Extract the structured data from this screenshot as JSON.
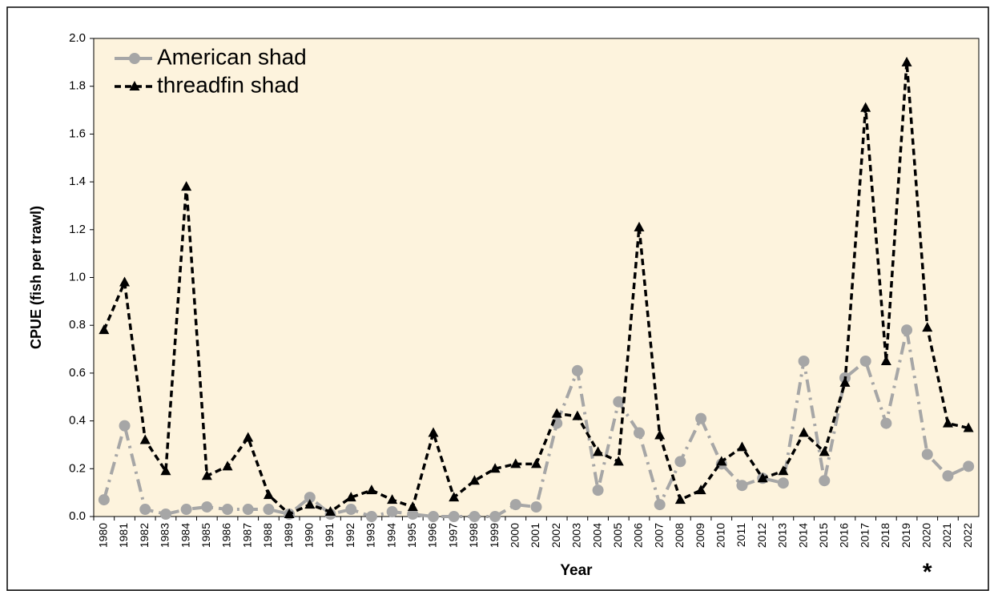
{
  "chart_data": {
    "type": "line",
    "y_label": "CPUE (fish per trawl)",
    "x_label": "Year",
    "annotation": "*",
    "categories": [
      "1980",
      "1981",
      "1982",
      "1983",
      "1984",
      "1985",
      "1986",
      "1987",
      "1988",
      "1989",
      "1990",
      "1991",
      "1992",
      "1993",
      "1994",
      "1995",
      "1996",
      "1997",
      "1998",
      "1999",
      "2000",
      "2001",
      "2002",
      "2003",
      "2004",
      "2005",
      "2006",
      "2007",
      "2008",
      "2009",
      "2010",
      "2011",
      "2012",
      "2013",
      "2014",
      "2015",
      "2016",
      "2017",
      "2018",
      "2019",
      "2020",
      "2021",
      "2022"
    ],
    "series": [
      {
        "name": "American shad",
        "color": "#a6a6a6",
        "marker": "circle",
        "values": [
          0.07,
          0.38,
          0.03,
          0.01,
          0.03,
          0.04,
          0.03,
          0.03,
          0.03,
          0.01,
          0.08,
          0.01,
          0.03,
          0.0,
          0.02,
          0.01,
          0.0,
          0.0,
          0.0,
          0.0,
          0.05,
          0.04,
          0.39,
          0.61,
          0.11,
          0.48,
          0.35,
          0.05,
          0.23,
          0.41,
          0.22,
          0.13,
          0.16,
          0.14,
          0.65,
          0.15,
          0.58,
          0.65,
          0.39,
          0.78,
          0.26,
          0.17,
          0.21
        ]
      },
      {
        "name": "threadfin shad",
        "color": "#000000",
        "marker": "triangle",
        "values": [
          0.78,
          0.98,
          0.32,
          0.19,
          1.38,
          0.17,
          0.21,
          0.33,
          0.09,
          0.01,
          0.05,
          0.02,
          0.08,
          0.11,
          0.07,
          0.04,
          0.35,
          0.08,
          0.15,
          0.2,
          0.22,
          0.22,
          0.43,
          0.42,
          0.27,
          0.23,
          1.21,
          0.34,
          0.07,
          0.11,
          0.23,
          0.29,
          0.16,
          0.19,
          0.35,
          0.27,
          0.56,
          1.71,
          0.65,
          1.9,
          0.79,
          0.39,
          0.37
        ]
      }
    ],
    "ylim": [
      0,
      2
    ],
    "yticks": [
      {
        "value": 0,
        "label": "0.0"
      },
      0.2,
      0.4,
      0.6,
      0.8,
      {
        "value": 1,
        "label": "1.0"
      },
      1.2,
      1.4,
      1.6,
      1.8,
      {
        "value": 2,
        "label": "2.0"
      }
    ],
    "grid": false,
    "legend": "top-left",
    "background": "#fdf3dd"
  }
}
